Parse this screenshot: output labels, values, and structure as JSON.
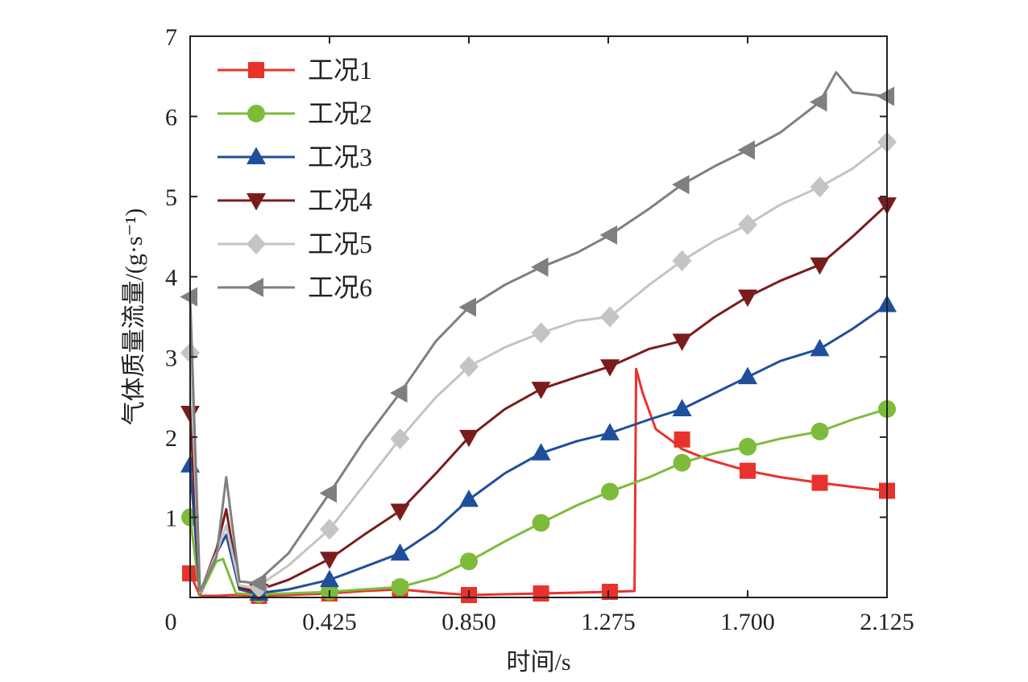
{
  "chart_data": {
    "type": "line",
    "title": "",
    "xlabel": "时间/s",
    "ylabel": "气体质量流量/(g·s⁻¹)",
    "xlim": [
      0,
      2.125
    ],
    "ylim": [
      0,
      7
    ],
    "xticks": [
      0,
      0.425,
      0.85,
      1.275,
      1.7,
      2.125
    ],
    "xtick_labels": [
      "0",
      "0.425",
      "0.850",
      "1.275",
      "1.700",
      "2.125"
    ],
    "yticks": [
      1,
      2,
      3,
      4,
      5,
      6,
      7
    ],
    "ytick_labels": [
      "1",
      "2",
      "3",
      "4",
      "5",
      "6",
      "7"
    ],
    "grid": false,
    "legend_position": "top-left",
    "series": [
      {
        "name": "工况1",
        "color": "#e8322d",
        "marker": "square",
        "x": [
          0,
          0.03,
          0.08,
          0.13,
          0.2,
          0.3,
          0.425,
          0.53,
          0.64,
          0.75,
          0.85,
          0.96,
          1.07,
          1.18,
          1.28,
          1.355,
          1.36,
          1.38,
          1.42,
          1.47,
          1.5,
          1.58,
          1.7,
          1.8,
          1.92,
          2.02,
          2.125
        ],
        "y": [
          0.3,
          0.02,
          0.02,
          0.03,
          0.02,
          0.03,
          0.05,
          0.08,
          0.1,
          0.06,
          0.03,
          0.04,
          0.05,
          0.06,
          0.07,
          0.08,
          2.85,
          2.55,
          2.1,
          1.95,
          1.85,
          1.72,
          1.58,
          1.5,
          1.43,
          1.38,
          1.33
        ],
        "marker_x": [
          0,
          0.21,
          0.425,
          0.64,
          0.85,
          1.07,
          1.28,
          1.5,
          1.7,
          1.92,
          2.125
        ],
        "marker_y": [
          0.3,
          0.02,
          0.05,
          0.1,
          0.03,
          0.05,
          0.07,
          1.97,
          1.58,
          1.43,
          1.33
        ]
      },
      {
        "name": "工况2",
        "color": "#7dbb3a",
        "marker": "circle",
        "x": [
          0,
          0.03,
          0.08,
          0.1,
          0.14,
          0.2,
          0.3,
          0.425,
          0.53,
          0.64,
          0.75,
          0.85,
          0.96,
          1.07,
          1.18,
          1.28,
          1.4,
          1.5,
          1.6,
          1.7,
          1.8,
          1.92,
          2.02,
          2.125
        ],
        "y": [
          1.0,
          0.03,
          0.45,
          0.48,
          0.05,
          0.04,
          0.05,
          0.07,
          0.1,
          0.13,
          0.25,
          0.45,
          0.7,
          0.93,
          1.15,
          1.32,
          1.5,
          1.68,
          1.8,
          1.88,
          1.98,
          2.07,
          2.22,
          2.35
        ],
        "marker_x": [
          0,
          0.21,
          0.425,
          0.64,
          0.85,
          1.07,
          1.28,
          1.5,
          1.7,
          1.92,
          2.125
        ],
        "marker_y": [
          1.0,
          0.04,
          0.07,
          0.13,
          0.45,
          0.93,
          1.32,
          1.68,
          1.88,
          2.07,
          2.35
        ]
      },
      {
        "name": "工况3",
        "color": "#1f4f9c",
        "marker": "triangle-up",
        "x": [
          0,
          0.03,
          0.08,
          0.11,
          0.15,
          0.2,
          0.3,
          0.425,
          0.53,
          0.64,
          0.75,
          0.85,
          0.96,
          1.07,
          1.18,
          1.28,
          1.4,
          1.5,
          1.6,
          1.7,
          1.8,
          1.92,
          2.02,
          2.125
        ],
        "y": [
          1.65,
          0.05,
          0.55,
          0.78,
          0.1,
          0.05,
          0.1,
          0.22,
          0.38,
          0.55,
          0.85,
          1.22,
          1.55,
          1.8,
          1.95,
          2.05,
          2.22,
          2.35,
          2.55,
          2.75,
          2.95,
          3.1,
          3.35,
          3.65
        ],
        "marker_x": [
          0,
          0.21,
          0.425,
          0.64,
          0.85,
          1.07,
          1.28,
          1.5,
          1.7,
          1.92,
          2.125
        ],
        "marker_y": [
          1.65,
          0.05,
          0.22,
          0.55,
          1.22,
          1.8,
          2.05,
          2.35,
          2.75,
          3.1,
          3.65
        ]
      },
      {
        "name": "工况4",
        "color": "#7b1c1c",
        "marker": "triangle-down",
        "x": [
          0,
          0.03,
          0.08,
          0.11,
          0.15,
          0.2,
          0.3,
          0.425,
          0.53,
          0.64,
          0.75,
          0.85,
          0.96,
          1.07,
          1.18,
          1.28,
          1.4,
          1.5,
          1.6,
          1.7,
          1.8,
          1.92,
          2.02,
          2.125
        ],
        "y": [
          2.3,
          0.05,
          0.6,
          1.1,
          0.12,
          0.08,
          0.22,
          0.48,
          0.78,
          1.08,
          1.55,
          2.0,
          2.35,
          2.6,
          2.75,
          2.88,
          3.1,
          3.2,
          3.5,
          3.75,
          3.95,
          4.15,
          4.5,
          4.9
        ],
        "marker_x": [
          0,
          0.21,
          0.425,
          0.64,
          0.85,
          1.07,
          1.28,
          1.5,
          1.7,
          1.92,
          2.125
        ],
        "marker_y": [
          2.3,
          0.08,
          0.48,
          1.08,
          2.0,
          2.6,
          2.88,
          3.2,
          3.75,
          4.15,
          4.9
        ]
      },
      {
        "name": "工况5",
        "color": "#c4c4c4",
        "marker": "diamond",
        "x": [
          0,
          0.03,
          0.08,
          0.11,
          0.15,
          0.2,
          0.3,
          0.425,
          0.53,
          0.64,
          0.75,
          0.85,
          0.96,
          1.07,
          1.18,
          1.28,
          1.4,
          1.5,
          1.6,
          1.7,
          1.8,
          1.92,
          2.02,
          2.125
        ],
        "y": [
          3.05,
          0.06,
          0.55,
          0.9,
          0.15,
          0.12,
          0.4,
          0.85,
          1.4,
          1.98,
          2.5,
          2.88,
          3.12,
          3.3,
          3.45,
          3.5,
          3.9,
          4.2,
          4.45,
          4.65,
          4.9,
          5.12,
          5.35,
          5.68
        ],
        "marker_x": [
          0,
          0.21,
          0.425,
          0.64,
          0.85,
          1.07,
          1.28,
          1.5,
          1.7,
          1.92,
          2.125
        ],
        "marker_y": [
          3.05,
          0.12,
          0.85,
          1.98,
          2.88,
          3.3,
          3.5,
          4.2,
          4.65,
          5.12,
          5.68
        ]
      },
      {
        "name": "工况6",
        "color": "#7f7f7f",
        "marker": "triangle-left",
        "x": [
          0,
          0.03,
          0.08,
          0.11,
          0.15,
          0.2,
          0.3,
          0.425,
          0.53,
          0.64,
          0.75,
          0.85,
          0.96,
          1.07,
          1.18,
          1.28,
          1.4,
          1.5,
          1.6,
          1.7,
          1.8,
          1.92,
          1.97,
          2.02,
          2.125
        ],
        "y": [
          3.75,
          0.08,
          0.5,
          1.5,
          0.2,
          0.18,
          0.55,
          1.3,
          1.95,
          2.55,
          3.2,
          3.62,
          3.9,
          4.12,
          4.3,
          4.52,
          4.85,
          5.15,
          5.38,
          5.58,
          5.8,
          6.18,
          6.55,
          6.3,
          6.25
        ],
        "marker_x": [
          0,
          0.21,
          0.425,
          0.64,
          0.85,
          1.07,
          1.28,
          1.5,
          1.7,
          1.92,
          2.125
        ],
        "marker_y": [
          3.75,
          0.18,
          1.3,
          2.55,
          3.62,
          4.12,
          4.52,
          5.15,
          5.58,
          6.18,
          6.25
        ]
      }
    ]
  }
}
